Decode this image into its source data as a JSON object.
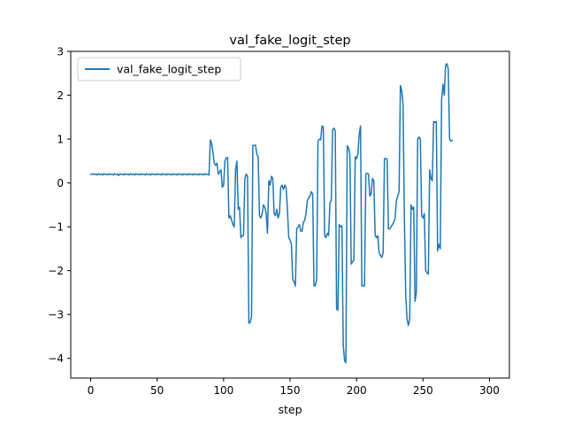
{
  "chart_data": {
    "type": "line",
    "title": "val_fake_logit_step",
    "xlabel": "step",
    "ylabel": "",
    "xlim": [
      -15,
      315
    ],
    "ylim": [
      -4.45,
      3.0
    ],
    "x_ticks": [
      0,
      50,
      100,
      150,
      200,
      250,
      300
    ],
    "y_ticks": [
      -4,
      -3,
      -2,
      -1,
      0,
      1,
      2,
      3
    ],
    "x_tick_labels": [
      "0",
      "50",
      "100",
      "150",
      "200",
      "250",
      "300"
    ],
    "y_tick_labels": [
      "−4",
      "−3",
      "−2",
      "−1",
      "0",
      "1",
      "2",
      "3"
    ],
    "grid": false,
    "legend": "top-left",
    "series": [
      {
        "name": "val_fake_logit_step",
        "color": "#1f77b4",
        "points": [
          [
            0,
            0.2
          ],
          [
            1,
            0.19
          ],
          [
            2,
            0.21
          ],
          [
            3,
            0.19
          ],
          [
            4,
            0.2
          ],
          [
            5,
            0.18
          ],
          [
            6,
            0.21
          ],
          [
            7,
            0.19
          ],
          [
            8,
            0.2
          ],
          [
            9,
            0.18
          ],
          [
            10,
            0.21
          ],
          [
            11,
            0.19
          ],
          [
            12,
            0.2
          ],
          [
            13,
            0.18
          ],
          [
            14,
            0.21
          ],
          [
            15,
            0.19
          ],
          [
            16,
            0.2
          ],
          [
            17,
            0.18
          ],
          [
            18,
            0.21
          ],
          [
            19,
            0.19
          ],
          [
            20,
            0.2
          ],
          [
            21,
            0.17
          ],
          [
            22,
            0.21
          ],
          [
            23,
            0.19
          ],
          [
            24,
            0.2
          ],
          [
            25,
            0.18
          ],
          [
            26,
            0.21
          ],
          [
            27,
            0.19
          ],
          [
            28,
            0.2
          ],
          [
            29,
            0.18
          ],
          [
            30,
            0.21
          ],
          [
            31,
            0.19
          ],
          [
            32,
            0.2
          ],
          [
            33,
            0.18
          ],
          [
            34,
            0.21
          ],
          [
            35,
            0.19
          ],
          [
            36,
            0.2
          ],
          [
            37,
            0.18
          ],
          [
            38,
            0.21
          ],
          [
            39,
            0.19
          ],
          [
            40,
            0.2
          ],
          [
            41,
            0.18
          ],
          [
            42,
            0.21
          ],
          [
            43,
            0.19
          ],
          [
            44,
            0.2
          ],
          [
            45,
            0.18
          ],
          [
            46,
            0.21
          ],
          [
            47,
            0.19
          ],
          [
            48,
            0.2
          ],
          [
            49,
            0.18
          ],
          [
            50,
            0.21
          ],
          [
            51,
            0.19
          ],
          [
            52,
            0.2
          ],
          [
            53,
            0.18
          ],
          [
            54,
            0.21
          ],
          [
            55,
            0.19
          ],
          [
            56,
            0.2
          ],
          [
            57,
            0.18
          ],
          [
            58,
            0.21
          ],
          [
            59,
            0.19
          ],
          [
            60,
            0.2
          ],
          [
            61,
            0.18
          ],
          [
            62,
            0.21
          ],
          [
            63,
            0.19
          ],
          [
            64,
            0.2
          ],
          [
            65,
            0.18
          ],
          [
            66,
            0.21
          ],
          [
            67,
            0.19
          ],
          [
            68,
            0.2
          ],
          [
            69,
            0.18
          ],
          [
            70,
            0.21
          ],
          [
            71,
            0.19
          ],
          [
            72,
            0.2
          ],
          [
            73,
            0.18
          ],
          [
            74,
            0.21
          ],
          [
            75,
            0.19
          ],
          [
            76,
            0.2
          ],
          [
            77,
            0.18
          ],
          [
            78,
            0.21
          ],
          [
            79,
            0.19
          ],
          [
            80,
            0.2
          ],
          [
            81,
            0.18
          ],
          [
            82,
            0.21
          ],
          [
            83,
            0.19
          ],
          [
            84,
            0.2
          ],
          [
            85,
            0.18
          ],
          [
            86,
            0.21
          ],
          [
            87,
            0.19
          ],
          [
            88,
            0.2
          ],
          [
            89,
            0.18
          ],
          [
            90,
            0.98
          ],
          [
            91,
            0.9
          ],
          [
            92,
            0.7
          ],
          [
            93,
            0.45
          ],
          [
            94,
            0.4
          ],
          [
            95,
            0.45
          ],
          [
            96,
            0.2
          ],
          [
            97,
            0.25
          ],
          [
            98,
            0.3
          ],
          [
            99,
            -0.1
          ],
          [
            100,
            -0.05
          ],
          [
            101,
            0.5
          ],
          [
            102,
            0.57
          ],
          [
            103,
            0.58
          ],
          [
            104,
            -0.8
          ],
          [
            105,
            -0.75
          ],
          [
            106,
            -0.85
          ],
          [
            107,
            -0.95
          ],
          [
            108,
            -1.0
          ],
          [
            109,
            0.3
          ],
          [
            110,
            0.5
          ],
          [
            111,
            -0.6
          ],
          [
            112,
            -0.55
          ],
          [
            113,
            -1.25
          ],
          [
            114,
            -1.2
          ],
          [
            115,
            -1.2
          ],
          [
            116,
            0.1
          ],
          [
            117,
            0.2
          ],
          [
            118,
            0.15
          ],
          [
            119,
            -3.2
          ],
          [
            120,
            -3.18
          ],
          [
            121,
            -3.05
          ],
          [
            122,
            0.85
          ],
          [
            123,
            0.86
          ],
          [
            124,
            0.86
          ],
          [
            125,
            0.65
          ],
          [
            126,
            0.6
          ],
          [
            127,
            -0.75
          ],
          [
            128,
            -0.8
          ],
          [
            129,
            -0.7
          ],
          [
            130,
            -0.5
          ],
          [
            131,
            -0.55
          ],
          [
            132,
            -0.7
          ],
          [
            133,
            -1.15
          ],
          [
            134,
            0.05
          ],
          [
            135,
            -0.05
          ],
          [
            136,
            0.15
          ],
          [
            137,
            0.1
          ],
          [
            138,
            -0.7
          ],
          [
            139,
            -0.75
          ],
          [
            140,
            -0.6
          ],
          [
            141,
            -0.8
          ],
          [
            142,
            -0.7
          ],
          [
            143,
            -0.1
          ],
          [
            144,
            -0.05
          ],
          [
            145,
            -0.15
          ],
          [
            146,
            -0.05
          ],
          [
            147,
            -0.1
          ],
          [
            148,
            -0.6
          ],
          [
            149,
            -1.25
          ],
          [
            150,
            -1.3
          ],
          [
            151,
            -1.4
          ],
          [
            152,
            -2.2
          ],
          [
            153,
            -2.25
          ],
          [
            154,
            -2.35
          ],
          [
            155,
            -1.05
          ],
          [
            156,
            -1.0
          ],
          [
            157,
            -0.95
          ],
          [
            158,
            -1.1
          ],
          [
            159,
            -1.1
          ],
          [
            160,
            -0.9
          ],
          [
            161,
            -0.85
          ],
          [
            162,
            -0.7
          ],
          [
            163,
            -0.4
          ],
          [
            164,
            -0.35
          ],
          [
            165,
            -0.3
          ],
          [
            166,
            -0.2
          ],
          [
            167,
            -0.25
          ],
          [
            168,
            -2.35
          ],
          [
            169,
            -2.34
          ],
          [
            170,
            -2.2
          ],
          [
            171,
            0.95
          ],
          [
            172,
            1.0
          ],
          [
            173,
            0.98
          ],
          [
            174,
            1.3
          ],
          [
            175,
            1.28
          ],
          [
            176,
            -1.2
          ],
          [
            177,
            -1.25
          ],
          [
            178,
            -1.15
          ],
          [
            179,
            -1.2
          ],
          [
            180,
            -0.45
          ],
          [
            181,
            -0.4
          ],
          [
            182,
            1.2
          ],
          [
            183,
            1.25
          ],
          [
            184,
            1.18
          ],
          [
            185,
            -2.88
          ],
          [
            186,
            -2.9
          ],
          [
            187,
            -0.95
          ],
          [
            188,
            -1.0
          ],
          [
            189,
            -0.98
          ],
          [
            190,
            -3.7
          ],
          [
            191,
            -4.05
          ],
          [
            192,
            -4.1
          ],
          [
            193,
            0.85
          ],
          [
            194,
            0.8
          ],
          [
            195,
            0.65
          ],
          [
            196,
            -1.85
          ],
          [
            197,
            -1.8
          ],
          [
            198,
            -1.75
          ],
          [
            199,
            0.6
          ],
          [
            200,
            0.55
          ],
          [
            201,
            0.65
          ],
          [
            202,
            1.1
          ],
          [
            203,
            1.3
          ],
          [
            204,
            -2.35
          ],
          [
            205,
            -2.34
          ],
          [
            206,
            -2.35
          ],
          [
            207,
            0.2
          ],
          [
            208,
            0.22
          ],
          [
            209,
            0.2
          ],
          [
            210,
            -0.3
          ],
          [
            211,
            -0.25
          ],
          [
            212,
            0.1
          ],
          [
            213,
            0.05
          ],
          [
            214,
            -1.2
          ],
          [
            215,
            -1.25
          ],
          [
            216,
            -1.2
          ],
          [
            217,
            -1.6
          ],
          [
            218,
            -1.65
          ],
          [
            219,
            -1.7
          ],
          [
            220,
            -1.6
          ],
          [
            221,
            0.55
          ],
          [
            222,
            0.56
          ],
          [
            223,
            0.54
          ],
          [
            224,
            -1.05
          ],
          [
            225,
            -1.05
          ],
          [
            226,
            -1.0
          ],
          [
            227,
            -0.95
          ],
          [
            228,
            -0.9
          ],
          [
            229,
            -0.8
          ],
          [
            230,
            -0.4
          ],
          [
            231,
            -0.3
          ],
          [
            232,
            -0.2
          ],
          [
            233,
            2.22
          ],
          [
            234,
            2.1
          ],
          [
            235,
            1.8
          ],
          [
            236,
            -0.8
          ],
          [
            237,
            -2.55
          ],
          [
            238,
            -3.1
          ],
          [
            239,
            -3.25
          ],
          [
            240,
            -3.1
          ],
          [
            241,
            -0.5
          ],
          [
            242,
            -0.6
          ],
          [
            243,
            -0.55
          ],
          [
            244,
            -2.7
          ],
          [
            245,
            -2.5
          ],
          [
            246,
            1.0
          ],
          [
            247,
            1.05
          ],
          [
            248,
            1.0
          ],
          [
            249,
            -0.75
          ],
          [
            250,
            -0.8
          ],
          [
            251,
            -0.7
          ],
          [
            252,
            -2.0
          ],
          [
            253,
            -2.05
          ],
          [
            254,
            -2.08
          ],
          [
            255,
            0.3
          ],
          [
            256,
            0.1
          ],
          [
            257,
            0.05
          ],
          [
            258,
            1.4
          ],
          [
            259,
            1.38
          ],
          [
            260,
            1.4
          ],
          [
            261,
            -1.55
          ],
          [
            262,
            -1.4
          ],
          [
            263,
            -1.5
          ],
          [
            264,
            1.9
          ],
          [
            265,
            2.25
          ],
          [
            266,
            2.0
          ],
          [
            267,
            2.68
          ],
          [
            268,
            2.72
          ],
          [
            269,
            2.6
          ],
          [
            270,
            1.0
          ],
          [
            271,
            0.95
          ],
          [
            272,
            0.97
          ]
        ]
      }
    ]
  }
}
